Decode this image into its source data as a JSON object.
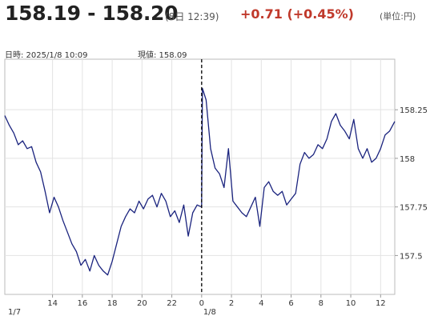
{
  "quote": {
    "price": "158.19 - 158.20",
    "as_of": "(8日 12:39)",
    "change": "+0.71 (+0.45%)",
    "unit": "(単位:円)",
    "change_color": "#c0392b"
  },
  "info": {
    "date_text": "日時: 2025/1/8 10:09",
    "price_text": "現値: 158.09"
  },
  "chart_data": {
    "type": "line",
    "title": "",
    "xlabel": "",
    "ylabel": "",
    "line_color": "#1a237e",
    "grid": true,
    "y_ticks": [
      {
        "value": 158.25,
        "label": "158.25"
      },
      {
        "value": 158,
        "label": "158"
      },
      {
        "value": 157.75,
        "label": "157.75"
      },
      {
        "value": 157.5,
        "label": "157.5"
      }
    ],
    "ylim": [
      157.3,
      158.51
    ],
    "x_ticks": [
      {
        "hour": 14,
        "label": "14"
      },
      {
        "hour": 16,
        "label": "16"
      },
      {
        "hour": 18,
        "label": "18"
      },
      {
        "hour": 20,
        "label": "20"
      },
      {
        "hour": 22,
        "label": "22"
      },
      {
        "hour": 24,
        "label": "0"
      },
      {
        "hour": 26,
        "label": "2"
      },
      {
        "hour": 28,
        "label": "4"
      },
      {
        "hour": 30,
        "label": "6"
      },
      {
        "hour": 32,
        "label": "8"
      },
      {
        "hour": 34,
        "label": "10"
      },
      {
        "hour": 36,
        "label": "12"
      }
    ],
    "xlim": [
      10.8,
      36.95
    ],
    "date_labels": [
      {
        "hour": 10.8,
        "label": "1/7"
      },
      {
        "hour": 24,
        "label": "1/8"
      }
    ],
    "cursor": {
      "hour": 24,
      "label": "現値: 158.09"
    },
    "series": [
      {
        "name": "",
        "x": [
          10.8,
          11.1,
          11.4,
          11.7,
          12.0,
          12.3,
          12.6,
          12.9,
          13.2,
          13.5,
          13.8,
          14.1,
          14.4,
          14.7,
          15.0,
          15.3,
          15.6,
          15.9,
          16.2,
          16.5,
          16.8,
          17.1,
          17.4,
          17.7,
          18.0,
          18.3,
          18.6,
          18.9,
          19.2,
          19.5,
          19.8,
          20.1,
          20.4,
          20.7,
          21.0,
          21.3,
          21.6,
          21.9,
          22.2,
          22.5,
          22.8,
          23.1,
          23.4,
          23.7,
          24.0,
          24.05,
          24.3,
          24.6,
          24.9,
          25.2,
          25.5,
          25.8,
          26.1,
          26.4,
          26.7,
          27.0,
          27.3,
          27.6,
          27.9,
          28.2,
          28.5,
          28.8,
          29.1,
          29.4,
          29.7,
          30.0,
          30.3,
          30.6,
          30.9,
          31.2,
          31.5,
          31.8,
          32.1,
          32.4,
          32.7,
          33.0,
          33.3,
          33.6,
          33.9,
          34.2,
          34.5,
          34.8,
          35.1,
          35.4,
          35.7,
          36.0,
          36.3,
          36.6,
          36.95
        ],
        "y": [
          158.22,
          158.17,
          158.13,
          158.07,
          158.09,
          158.05,
          158.06,
          157.98,
          157.93,
          157.83,
          157.72,
          157.8,
          157.75,
          157.68,
          157.62,
          157.56,
          157.52,
          157.45,
          157.48,
          157.42,
          157.5,
          157.45,
          157.42,
          157.4,
          157.47,
          157.56,
          157.65,
          157.7,
          157.74,
          157.72,
          157.78,
          157.74,
          157.79,
          157.81,
          157.75,
          157.82,
          157.78,
          157.7,
          157.73,
          157.67,
          157.76,
          157.6,
          157.72,
          157.76,
          157.75,
          158.36,
          158.3,
          158.05,
          157.95,
          157.92,
          157.85,
          158.05,
          157.78,
          157.75,
          157.72,
          157.7,
          157.75,
          157.8,
          157.65,
          157.85,
          157.88,
          157.83,
          157.81,
          157.83,
          157.76,
          157.79,
          157.82,
          157.97,
          158.03,
          158.0,
          158.02,
          158.07,
          158.05,
          158.1,
          158.19,
          158.23,
          158.17,
          158.14,
          158.1,
          158.2,
          158.05,
          158.0,
          158.05,
          157.98,
          158.0,
          158.05,
          158.12,
          158.14,
          158.19
        ]
      }
    ]
  }
}
